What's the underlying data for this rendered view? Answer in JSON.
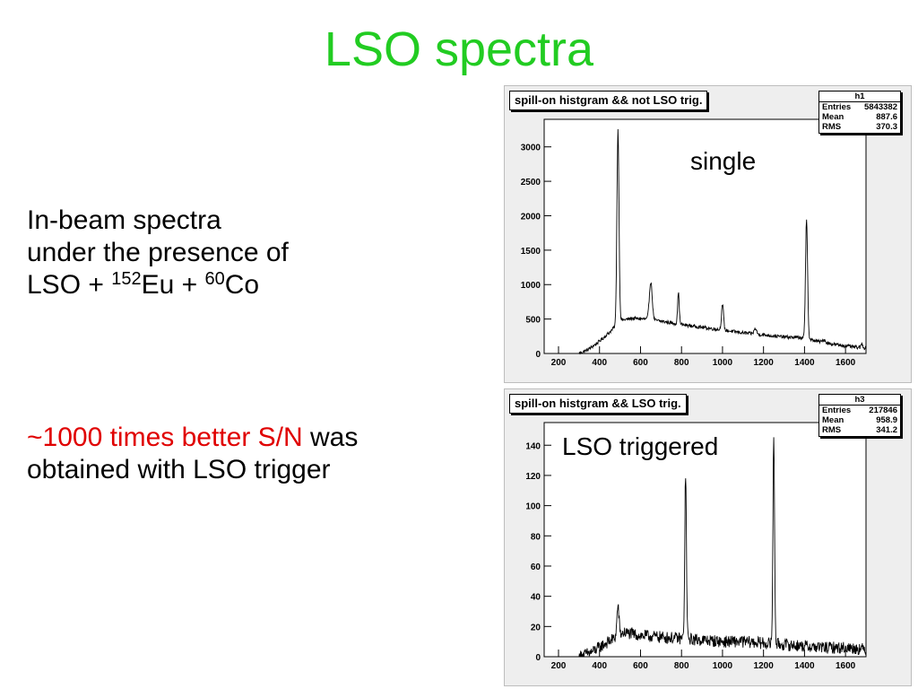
{
  "slide": {
    "title": "LSO spectra",
    "intro_line1": "In-beam spectra",
    "intro_line2": "under the presence of",
    "intro_line3_prefix": "LSO + ",
    "eu_mass": "152",
    "eu_symbol": "Eu",
    "plus": " + ",
    "co_mass": "60",
    "co_symbol": "Co",
    "result_highlight": "~1000 times better S/N",
    "result_rest": " was",
    "result_line2": "obtained with LSO trigger"
  },
  "colors": {
    "title": "#22cc22",
    "highlight": "#e00000",
    "panel_background": "#eeeeee",
    "plot_background": "#ffffff",
    "trace": "#000000"
  },
  "chart_data": [
    {
      "type": "line",
      "title": "spill-on histgram && not LSO trig.",
      "annotation": "single",
      "stats": {
        "name": "h1",
        "rows": [
          {
            "label": "Entries",
            "value": "5843382"
          },
          {
            "label": "Mean",
            "value": "887.6"
          },
          {
            "label": "RMS",
            "value": "370.3"
          }
        ]
      },
      "xlim": [
        130,
        1700
      ],
      "ylim": [
        0,
        3400
      ],
      "xticks": [
        200,
        400,
        600,
        800,
        1000,
        1200,
        1400,
        1600
      ],
      "yticks": [
        0,
        500,
        1000,
        1500,
        2000,
        2500,
        3000
      ],
      "grid": false,
      "noise": 25,
      "baseline": [
        [
          130,
          0
        ],
        [
          300,
          0
        ],
        [
          340,
          50
        ],
        [
          380,
          130
        ],
        [
          420,
          230
        ],
        [
          460,
          340
        ],
        [
          500,
          480
        ],
        [
          560,
          510
        ],
        [
          620,
          500
        ],
        [
          700,
          470
        ],
        [
          800,
          420
        ],
        [
          900,
          380
        ],
        [
          1000,
          340
        ],
        [
          1100,
          300
        ],
        [
          1200,
          270
        ],
        [
          1300,
          240
        ],
        [
          1380,
          230
        ],
        [
          1460,
          180
        ],
        [
          1550,
          130
        ],
        [
          1650,
          90
        ],
        [
          1700,
          80
        ]
      ],
      "peaks": [
        {
          "x": 490,
          "height": 2800,
          "width": 5
        },
        {
          "x": 650,
          "height": 550,
          "width": 7
        },
        {
          "x": 785,
          "height": 450,
          "width": 4
        },
        {
          "x": 1000,
          "height": 370,
          "width": 5
        },
        {
          "x": 1160,
          "height": 80,
          "width": 6
        },
        {
          "x": 1410,
          "height": 1750,
          "width": 5
        },
        {
          "x": 1495,
          "height": 40,
          "width": 6
        },
        {
          "x": 1680,
          "height": 60,
          "width": 4
        }
      ]
    },
    {
      "type": "line",
      "title": "spill-on histgram && LSO trig.",
      "annotation": "LSO triggered",
      "stats": {
        "name": "h3",
        "rows": [
          {
            "label": "Entries",
            "value": "217846"
          },
          {
            "label": "Mean",
            "value": "958.9"
          },
          {
            "label": "RMS",
            "value": "341.2"
          }
        ]
      },
      "xlim": [
        130,
        1700
      ],
      "ylim": [
        0,
        155
      ],
      "xticks": [
        200,
        400,
        600,
        800,
        1000,
        1200,
        1400,
        1600
      ],
      "yticks": [
        0,
        20,
        40,
        60,
        80,
        100,
        120,
        140
      ],
      "grid": false,
      "noise": 4,
      "baseline": [
        [
          130,
          0
        ],
        [
          300,
          0
        ],
        [
          360,
          3
        ],
        [
          420,
          8
        ],
        [
          470,
          12
        ],
        [
          520,
          16
        ],
        [
          600,
          14
        ],
        [
          700,
          13
        ],
        [
          800,
          12
        ],
        [
          900,
          11
        ],
        [
          1000,
          10
        ],
        [
          1100,
          10
        ],
        [
          1200,
          9
        ],
        [
          1300,
          8
        ],
        [
          1400,
          7
        ],
        [
          1500,
          6
        ],
        [
          1600,
          6
        ],
        [
          1700,
          5
        ]
      ],
      "peaks": [
        {
          "x": 490,
          "height": 20,
          "width": 5
        },
        {
          "x": 820,
          "height": 110,
          "width": 4
        },
        {
          "x": 1250,
          "height": 135,
          "width": 4
        }
      ]
    }
  ]
}
